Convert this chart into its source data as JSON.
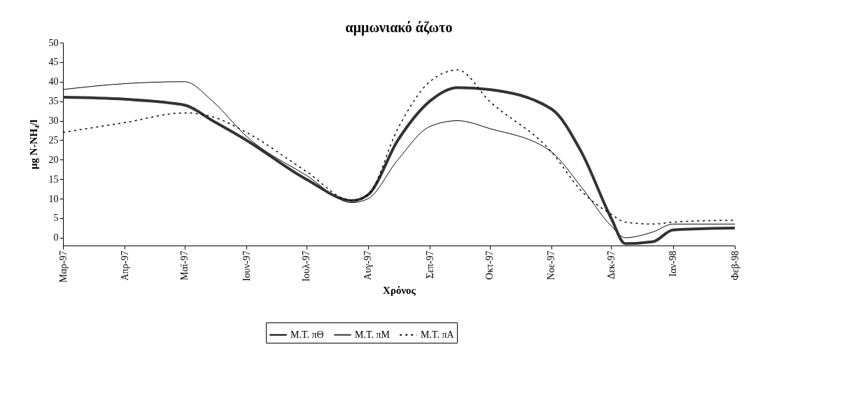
{
  "chart_data": {
    "type": "line",
    "title": "αμμωνιακό άζωτο",
    "xlabel": "Χρόνος",
    "ylabel": "μg N-NH₄/l",
    "x": [
      "1997-03-01",
      "1997-04-01",
      "1997-05-01",
      "1997-05-15",
      "1997-06-01",
      "1997-07-01",
      "1997-07-24",
      "1997-08-01",
      "1997-08-16",
      "1997-09-01",
      "1997-09-15",
      "1997-10-01",
      "1997-11-01",
      "1997-11-16",
      "1997-12-01",
      "1997-12-08",
      "1997-12-22",
      "1998-01-01",
      "1998-02-01"
    ],
    "series": [
      {
        "name": "Μ.Τ. πΘ",
        "color": "#000000",
        "line_style": "solid",
        "values": [
          38,
          39.5,
          40,
          35,
          26,
          16,
          9,
          10,
          20,
          28.5,
          30,
          28,
          22,
          13,
          3,
          0,
          1.5,
          3.5,
          3.5
        ]
      },
      {
        "name": "Μ.Τ. πΜ",
        "color": "#333333",
        "line_style": "solid",
        "values": [
          36,
          35.5,
          34,
          30,
          25,
          15,
          9.5,
          11,
          25,
          35,
          38.5,
          38,
          33,
          22,
          5,
          -1.5,
          -1,
          2,
          2.5
        ]
      },
      {
        "name": "Μ.Τ. πΑ",
        "color": "#000000",
        "line_style": "dotted",
        "values": [
          27,
          29.5,
          32,
          31,
          27,
          17,
          9.5,
          11,
          28,
          40,
          43,
          35,
          22,
          12,
          6,
          4,
          3.5,
          4,
          4.5
        ]
      }
    ],
    "xlim": [
      "1997-03-01",
      "1998-02-01"
    ],
    "xticks": [
      {
        "value": "1997-03-01",
        "label": "Μαρ-97"
      },
      {
        "value": "1997-04-01",
        "label": "Απρ-97"
      },
      {
        "value": "1997-05-01",
        "label": "Μαϊ-97"
      },
      {
        "value": "1997-06-01",
        "label": "Ιουν-97"
      },
      {
        "value": "1997-07-01",
        "label": "Ιουλ-97"
      },
      {
        "value": "1997-08-01",
        "label": "Αυγ-97"
      },
      {
        "value": "1997-09-01",
        "label": "Σεπ-97"
      },
      {
        "value": "1997-10-01",
        "label": "Οκτ-97"
      },
      {
        "value": "1997-11-01",
        "label": "Νοε-97"
      },
      {
        "value": "1997-12-01",
        "label": "Δεκ-97"
      },
      {
        "value": "1998-01-01",
        "label": "Ιαν-98"
      },
      {
        "value": "1998-02-01",
        "label": "Φεβ-98"
      }
    ],
    "ylim": [
      -2,
      50
    ],
    "yticks": [
      0,
      5,
      10,
      15,
      20,
      25,
      30,
      35,
      40,
      45,
      50
    ],
    "grid": false,
    "legend": "bottom",
    "marker": "none"
  }
}
